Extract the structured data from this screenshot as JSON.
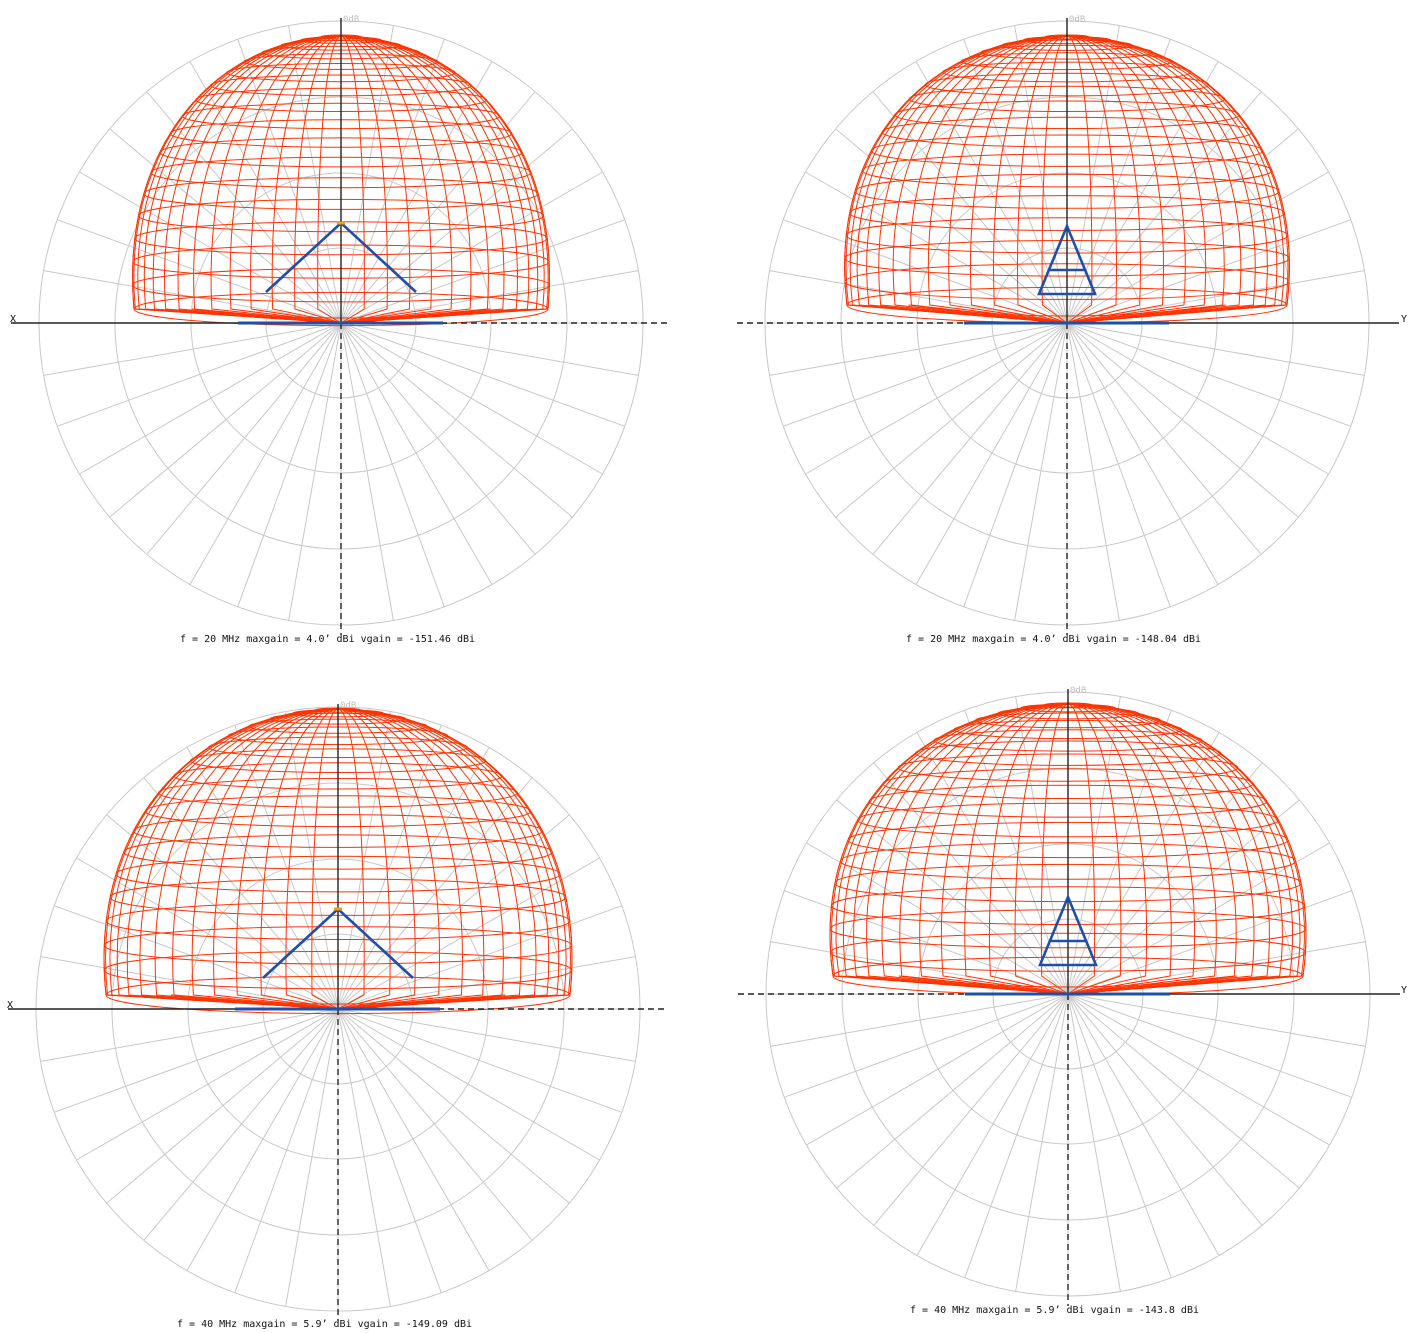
{
  "colors": {
    "pattern": "#ff3300",
    "antenna": "#1f4fa8",
    "feed": "#f5a000",
    "grid": "#c8c8c8",
    "axis": "#222222"
  },
  "panels": [
    {
      "axis_label": "X",
      "axis_side": "left",
      "view": "side-x",
      "db_label": "0dB",
      "caption": "f = 20 MHz   maxgain = 4.0’ dBi   vgain = -151.46 dBi",
      "frequency_mhz": 20,
      "vgain_dbi": -151.46
    },
    {
      "axis_label": "Y",
      "axis_side": "right",
      "view": "side-y",
      "db_label": "0dB",
      "caption": "f = 20 MHz   maxgain = 4.0’ dBi   vgain = -148.04 dBi",
      "frequency_mhz": 20,
      "vgain_dbi": -148.04
    },
    {
      "axis_label": "X",
      "axis_side": "left",
      "view": "side-x",
      "db_label": "0dB",
      "caption": "f = 40 MHz   maxgain = 5.9’ dBi   vgain = -149.09 dBi",
      "frequency_mhz": 40,
      "vgain_dbi": -149.09
    },
    {
      "axis_label": "Y",
      "axis_side": "right",
      "view": "side-y",
      "db_label": "0dB",
      "caption": "f = 40 MHz   maxgain = 5.9’ dBi   vgain = -143.8 dBi",
      "frequency_mhz": 40,
      "vgain_dbi": -143.8
    }
  ]
}
